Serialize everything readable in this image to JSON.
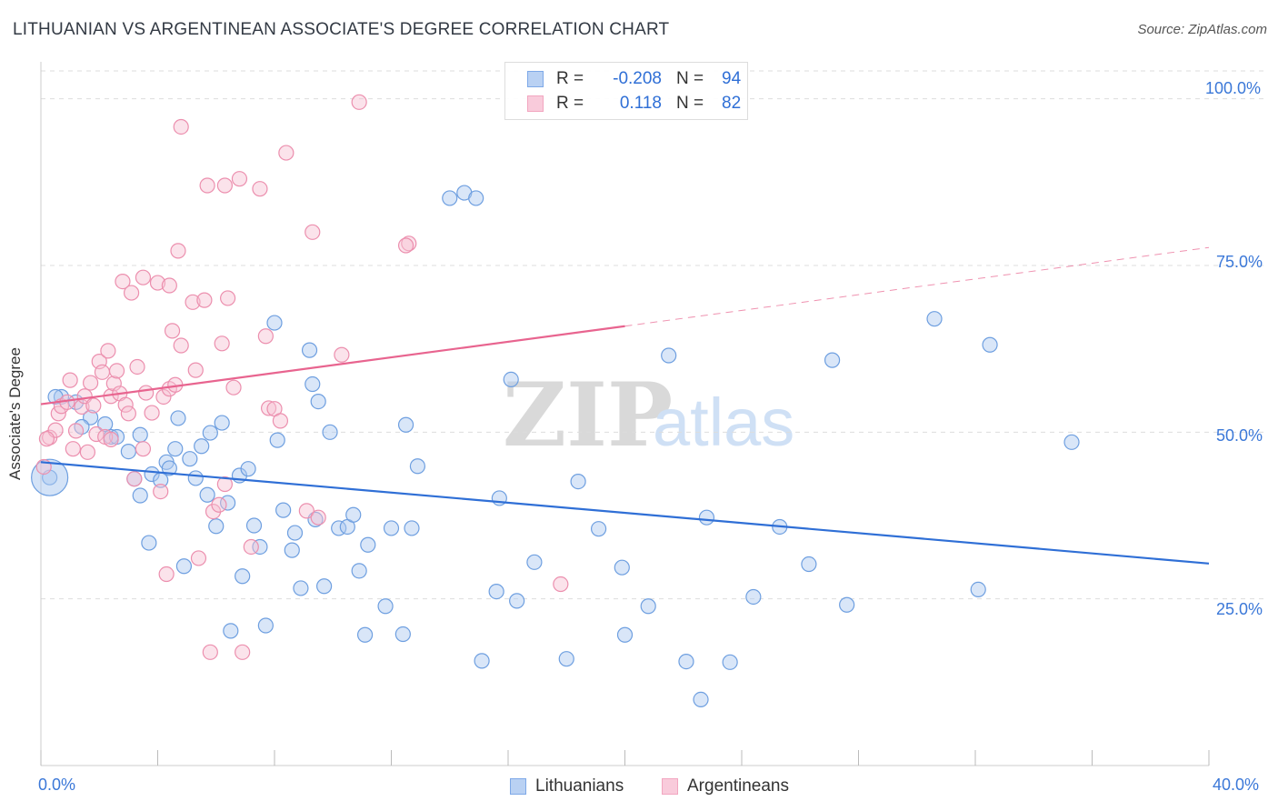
{
  "title": "LITHUANIAN VS ARGENTINEAN ASSOCIATE'S DEGREE CORRELATION CHART",
  "source": "Source: ZipAtlas.com",
  "watermark": {
    "zip": "ZIP",
    "atlas": "atlas"
  },
  "legend_top": {
    "rows": [
      {
        "r_label": "R =",
        "r_value": "-0.208",
        "n_label": "N =",
        "n_value": "94",
        "color": "#7ea9e8"
      },
      {
        "r_label": "R =",
        "r_value": "0.118",
        "n_label": "N =",
        "n_value": "82",
        "color": "#f2a6c0"
      }
    ]
  },
  "colors": {
    "blue_fill": "#aac8f0",
    "blue_stroke": "#6e9fe0",
    "blue_line": "#2f6fd6",
    "pink_fill": "#f7c0d2",
    "pink_stroke": "#ec8fae",
    "pink_line": "#e8648f",
    "tick_text": "#3b78d8",
    "grid": "#dddddd"
  },
  "chart_data": {
    "type": "scatter",
    "title": "LITHUANIAN VS ARGENTINEAN ASSOCIATE'S DEGREE CORRELATION CHART",
    "xlabel": "",
    "ylabel": "Associate's Degree",
    "xlim": [
      0,
      40
    ],
    "ylim": [
      0,
      105
    ],
    "x_tick_labels": [
      "0.0%",
      "40.0%"
    ],
    "y_tick_labels": [
      "25.0%",
      "50.0%",
      "75.0%",
      "100.0%"
    ],
    "y_ticks": [
      25,
      50,
      75,
      100
    ],
    "grid": true,
    "legend_position": "bottom",
    "series": [
      {
        "name": "Lithuanians",
        "color": "#7ea9e8",
        "trend": {
          "x": [
            0,
            40
          ],
          "y": [
            45.5,
            30.3
          ]
        },
        "points": [
          [
            0.3,
            43.2
          ],
          [
            0.7,
            55.3
          ],
          [
            1.2,
            54.5
          ],
          [
            0.5,
            55.3
          ],
          [
            1.7,
            52.2
          ],
          [
            1.4,
            50.8
          ],
          [
            2.2,
            51.2
          ],
          [
            2.4,
            49.3
          ],
          [
            2.6,
            49.3
          ],
          [
            3.0,
            47.1
          ],
          [
            3.2,
            43.0
          ],
          [
            3.4,
            40.5
          ],
          [
            3.4,
            49.6
          ],
          [
            3.8,
            43.7
          ],
          [
            3.7,
            33.4
          ],
          [
            4.1,
            42.8
          ],
          [
            4.3,
            45.5
          ],
          [
            4.4,
            44.6
          ],
          [
            4.6,
            47.5
          ],
          [
            4.7,
            52.1
          ],
          [
            4.9,
            29.9
          ],
          [
            5.1,
            46.0
          ],
          [
            5.3,
            43.1
          ],
          [
            5.5,
            47.9
          ],
          [
            5.7,
            40.6
          ],
          [
            5.8,
            49.9
          ],
          [
            6.0,
            35.9
          ],
          [
            6.2,
            51.4
          ],
          [
            6.4,
            39.4
          ],
          [
            6.5,
            20.2
          ],
          [
            6.8,
            43.5
          ],
          [
            6.9,
            28.4
          ],
          [
            7.1,
            44.5
          ],
          [
            7.3,
            36.0
          ],
          [
            7.5,
            32.8
          ],
          [
            7.7,
            21.0
          ],
          [
            8.0,
            66.4
          ],
          [
            8.1,
            48.8
          ],
          [
            8.3,
            38.3
          ],
          [
            8.6,
            32.3
          ],
          [
            8.7,
            34.9
          ],
          [
            8.9,
            26.6
          ],
          [
            9.2,
            62.3
          ],
          [
            9.3,
            57.2
          ],
          [
            9.4,
            36.9
          ],
          [
            9.5,
            54.6
          ],
          [
            9.7,
            26.9
          ],
          [
            9.9,
            50.0
          ],
          [
            10.2,
            35.6
          ],
          [
            10.5,
            35.8
          ],
          [
            10.7,
            37.6
          ],
          [
            10.9,
            29.2
          ],
          [
            11.1,
            19.6
          ],
          [
            11.2,
            33.1
          ],
          [
            11.8,
            23.9
          ],
          [
            12.0,
            35.6
          ],
          [
            12.4,
            19.7
          ],
          [
            12.5,
            51.1
          ],
          [
            12.7,
            35.6
          ],
          [
            12.9,
            44.9
          ],
          [
            14.0,
            85.1
          ],
          [
            14.5,
            85.9
          ],
          [
            14.9,
            85.1
          ],
          [
            15.1,
            15.7
          ],
          [
            15.6,
            26.1
          ],
          [
            15.7,
            40.1
          ],
          [
            16.1,
            57.9
          ],
          [
            16.3,
            24.7
          ],
          [
            16.9,
            30.5
          ],
          [
            18.0,
            16.0
          ],
          [
            18.4,
            42.6
          ],
          [
            19.1,
            35.5
          ],
          [
            19.9,
            29.7
          ],
          [
            20.0,
            19.6
          ],
          [
            20.8,
            23.9
          ],
          [
            21.5,
            61.5
          ],
          [
            22.1,
            15.6
          ],
          [
            22.6,
            9.9
          ],
          [
            22.8,
            37.2
          ],
          [
            23.6,
            15.5
          ],
          [
            24.4,
            25.3
          ],
          [
            25.3,
            35.8
          ],
          [
            26.3,
            30.2
          ],
          [
            27.1,
            60.8
          ],
          [
            27.6,
            24.1
          ],
          [
            30.6,
            67.0
          ],
          [
            32.1,
            26.4
          ],
          [
            32.5,
            63.1
          ],
          [
            35.3,
            48.5
          ]
        ],
        "big_point": [
          0.3,
          43.2
        ]
      },
      {
        "name": "Argentineans",
        "color": "#f2a6c0",
        "trend": {
          "x": [
            0,
            20
          ],
          "y": [
            54.2,
            65.9
          ]
        },
        "trend_extended": {
          "x": [
            20,
            40
          ],
          "y": [
            65.9,
            77.7
          ]
        },
        "points": [
          [
            0.1,
            44.8
          ],
          [
            0.3,
            49.2
          ],
          [
            0.5,
            50.3
          ],
          [
            0.6,
            52.8
          ],
          [
            0.7,
            53.9
          ],
          [
            0.9,
            54.5
          ],
          [
            1.0,
            57.8
          ],
          [
            1.1,
            47.5
          ],
          [
            1.2,
            50.2
          ],
          [
            1.4,
            53.8
          ],
          [
            1.5,
            55.4
          ],
          [
            1.7,
            57.4
          ],
          [
            1.8,
            54.0
          ],
          [
            1.9,
            49.7
          ],
          [
            2.0,
            60.6
          ],
          [
            2.1,
            59.0
          ],
          [
            2.2,
            49.3
          ],
          [
            2.3,
            62.2
          ],
          [
            2.4,
            55.4
          ],
          [
            2.5,
            57.3
          ],
          [
            2.6,
            59.2
          ],
          [
            2.7,
            55.8
          ],
          [
            2.8,
            72.6
          ],
          [
            2.9,
            54.1
          ],
          [
            3.0,
            52.8
          ],
          [
            3.1,
            70.9
          ],
          [
            3.2,
            43.0
          ],
          [
            3.3,
            59.8
          ],
          [
            3.5,
            47.5
          ],
          [
            3.5,
            73.2
          ],
          [
            3.6,
            55.9
          ],
          [
            3.8,
            52.9
          ],
          [
            4.0,
            72.4
          ],
          [
            4.1,
            41.1
          ],
          [
            4.2,
            55.3
          ],
          [
            4.3,
            28.7
          ],
          [
            4.4,
            56.5
          ],
          [
            4.4,
            72.0
          ],
          [
            4.5,
            65.2
          ],
          [
            4.6,
            57.1
          ],
          [
            4.7,
            77.2
          ],
          [
            4.8,
            63.0
          ],
          [
            4.8,
            95.8
          ],
          [
            5.2,
            69.5
          ],
          [
            5.3,
            59.3
          ],
          [
            5.4,
            31.1
          ],
          [
            5.6,
            69.8
          ],
          [
            5.7,
            87.0
          ],
          [
            5.8,
            17.0
          ],
          [
            5.9,
            38.1
          ],
          [
            6.1,
            39.1
          ],
          [
            6.2,
            63.3
          ],
          [
            6.3,
            87.0
          ],
          [
            6.3,
            42.2
          ],
          [
            6.4,
            70.1
          ],
          [
            6.6,
            56.7
          ],
          [
            6.8,
            88.0
          ],
          [
            6.9,
            17.0
          ],
          [
            7.2,
            32.8
          ],
          [
            7.5,
            86.5
          ],
          [
            7.7,
            64.4
          ],
          [
            7.8,
            53.6
          ],
          [
            8.0,
            53.5
          ],
          [
            8.2,
            51.7
          ],
          [
            8.4,
            91.9
          ],
          [
            9.1,
            38.2
          ],
          [
            9.3,
            80.0
          ],
          [
            9.5,
            37.2
          ],
          [
            10.3,
            61.6
          ],
          [
            10.9,
            99.5
          ],
          [
            12.6,
            78.3
          ],
          [
            12.5,
            78.0
          ],
          [
            17.8,
            27.2
          ],
          [
            0.2,
            49.0
          ],
          [
            1.6,
            47.0
          ],
          [
            2.4,
            48.9
          ]
        ]
      }
    ]
  },
  "legend_bottom": [
    {
      "label": "Lithuanians",
      "color": "#7ea9e8"
    },
    {
      "label": "Argentineans",
      "color": "#f2a6c0"
    }
  ]
}
